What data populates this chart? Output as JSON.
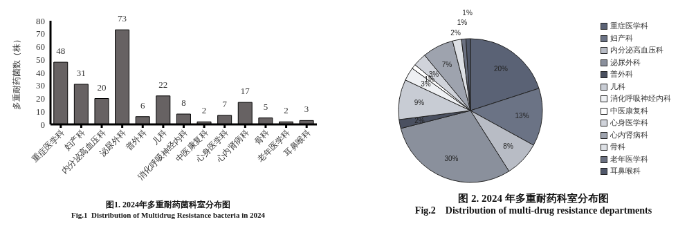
{
  "chart_data": [
    {
      "type": "bar",
      "title": "图1. 2024年多重耐药菌科室分布图",
      "subtitle": "Fig.1  Distribution of Multidrug Resistance bacteria in 2024",
      "ylabel": "多重耐药菌数（株）",
      "categories": [
        "重症医学科",
        "妇产科",
        "内分泌高血压科",
        "泌尿外科",
        "普外科",
        "儿科",
        "消化呼吸神经内科",
        "中医康复科",
        "心身医学科",
        "心内肾病科",
        "骨科",
        "老年医学科",
        "耳鼻喉科"
      ],
      "values": [
        48,
        31,
        20,
        73,
        6,
        22,
        8,
        2,
        7,
        17,
        5,
        2,
        3
      ],
      "color": "#676263",
      "data_labels": true,
      "ylim": [
        0,
        80
      ],
      "yticks": [
        0,
        10,
        20,
        30,
        40,
        50,
        60,
        70,
        80
      ]
    },
    {
      "type": "pie",
      "title": "图 2. 2024 年多重耐药科室分布图",
      "subtitle": "Fig.2    Distribution of multi-drug resistance departments",
      "categories": [
        "重症医学科",
        "妇产科",
        "内分泌高血压科",
        "泌尿外科",
        "普外科",
        "儿科",
        "消化呼吸神经内科",
        "中医康复科",
        "心身医学科",
        "心内肾病科",
        "骨科",
        "老年医学科",
        "耳鼻喉科"
      ],
      "values": [
        20,
        13,
        8,
        30,
        2,
        9,
        3,
        1,
        3,
        7,
        2,
        1,
        1
      ],
      "value_labels": [
        "20%",
        "13%",
        "8%",
        "30%",
        "2%",
        "9%",
        "3%",
        "1%",
        "3%",
        "7%",
        "2%",
        "1%",
        "1%"
      ],
      "colors": [
        "#5a6275",
        "#6b7385",
        "#b8bcc5",
        "#8a909c",
        "#4a5060",
        "#c8ccd4",
        "#eef0f3",
        "#ffffff",
        "#d0d3da",
        "#9ea3ae",
        "#dde0e5",
        "#6a7080",
        "#50586a"
      ],
      "legend": "right"
    }
  ]
}
